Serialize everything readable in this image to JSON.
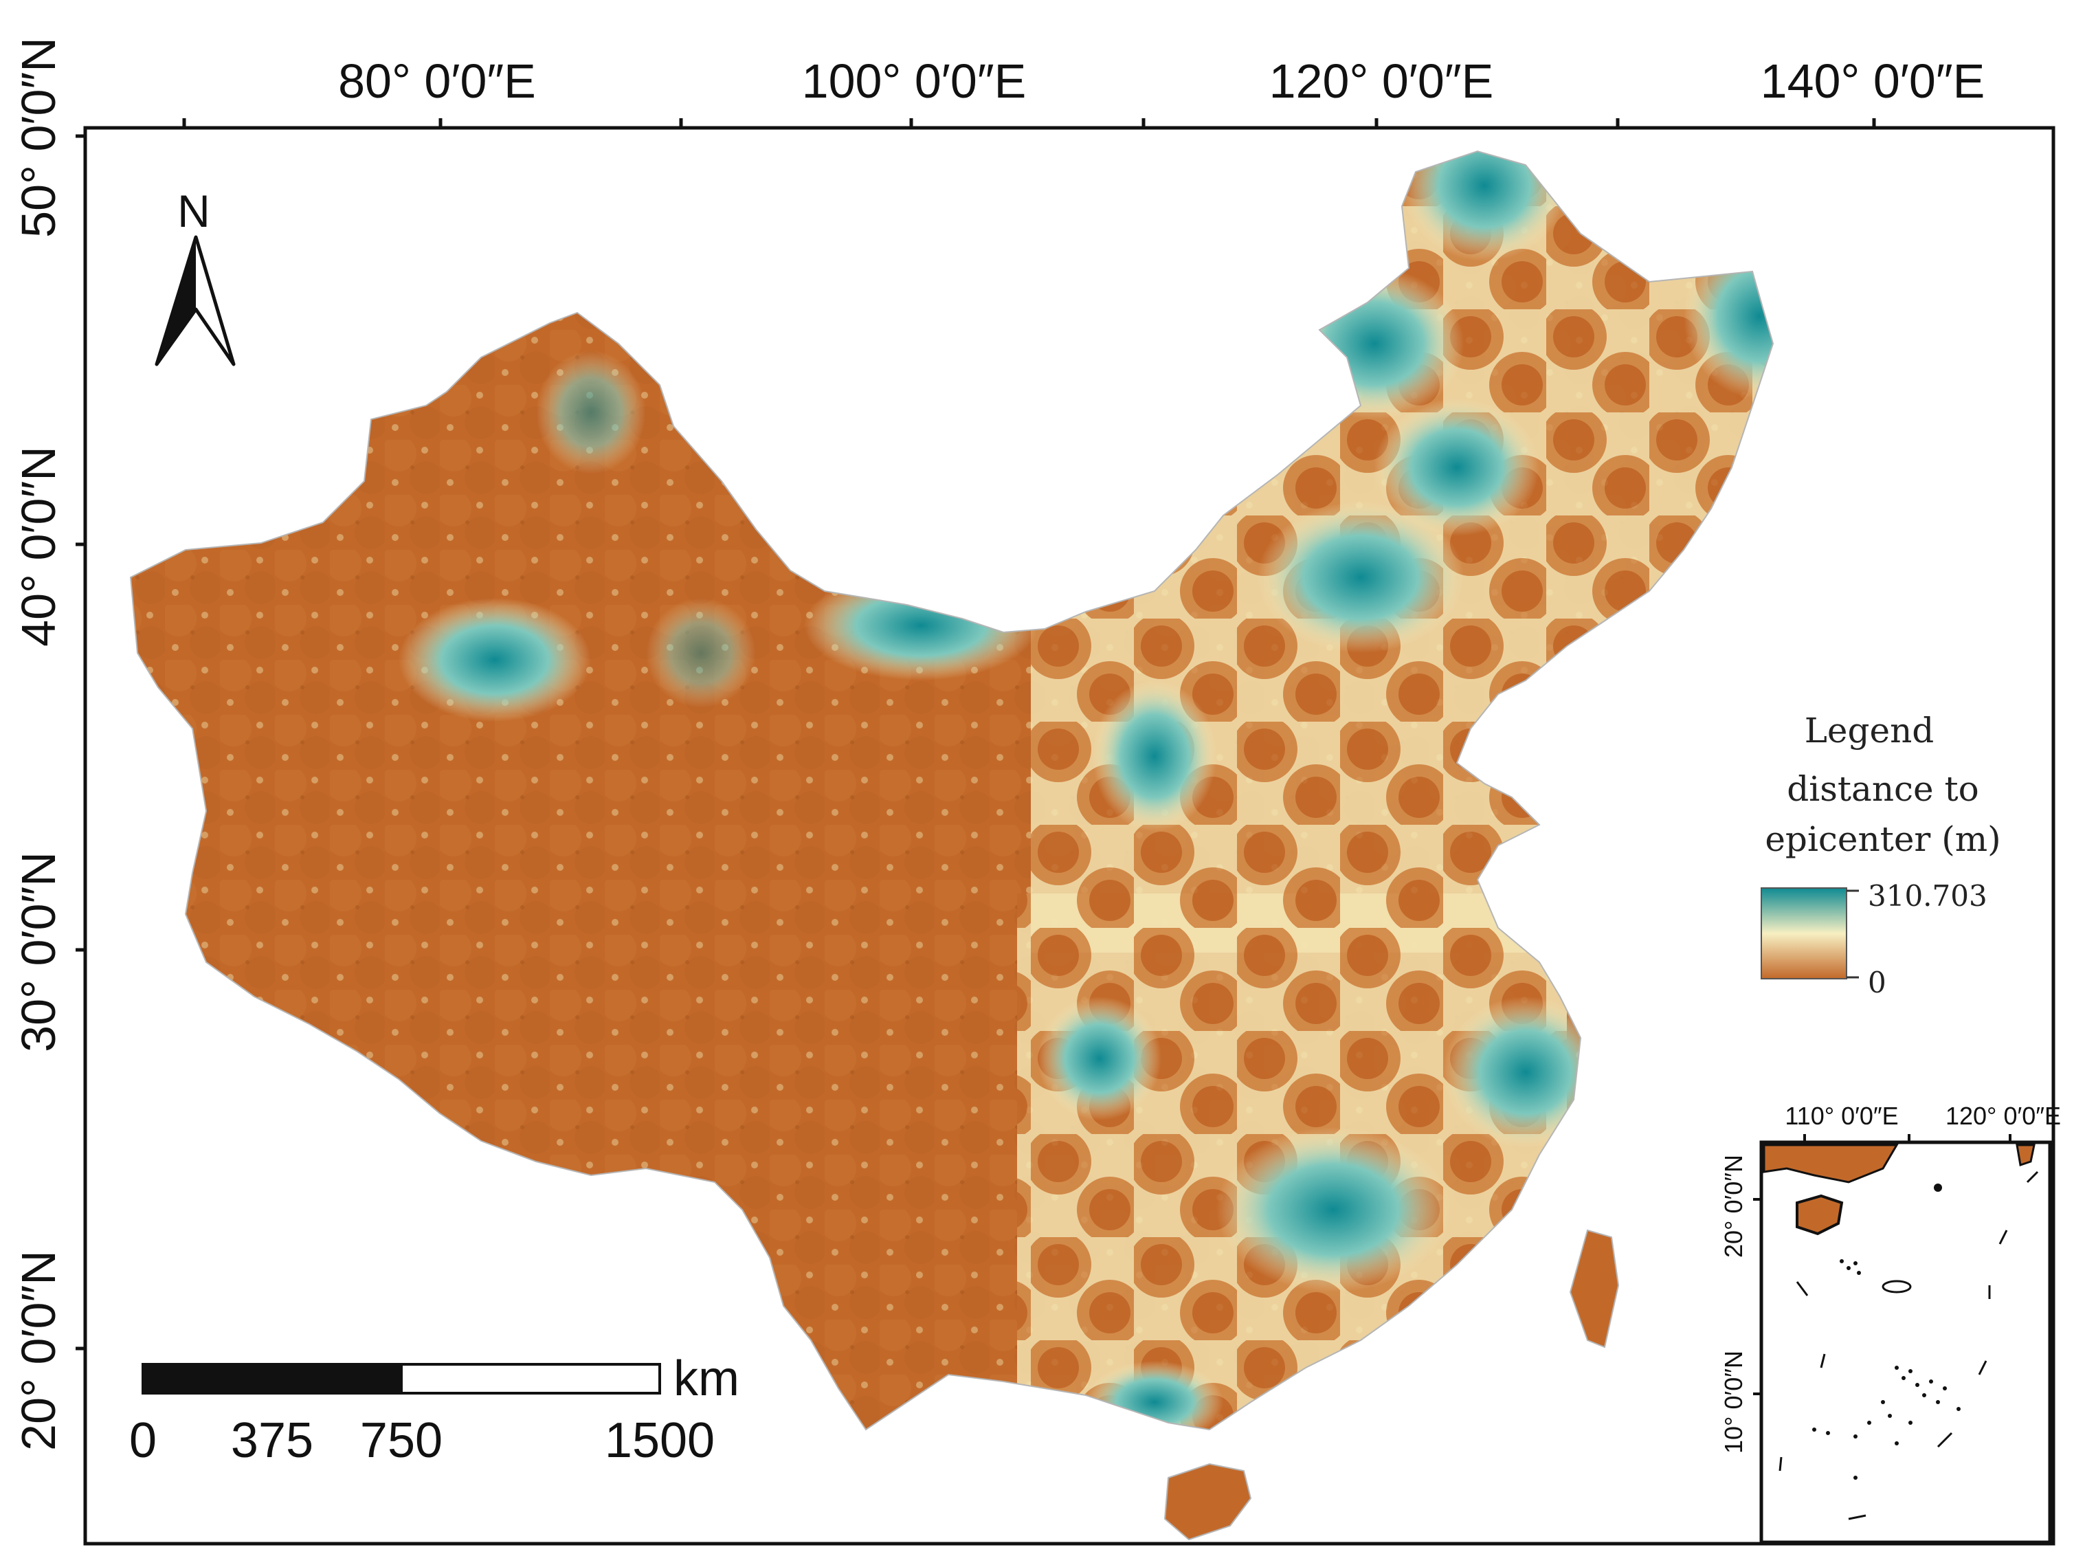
{
  "map": {
    "top_axis_labels": [
      "80° 0′0″E",
      "100° 0′0″E",
      "120° 0′0″E",
      "140° 0′0″E"
    ],
    "left_axis_labels": [
      "50° 0′0″N",
      "40° 0′0″N",
      "30° 0′0″N",
      "20° 0′0″N"
    ],
    "north_arrow_label": "N",
    "scale_bar": {
      "unit": "km",
      "ticks": [
        "0",
        "375",
        "750",
        "1500"
      ]
    },
    "legend": {
      "title": "Legend",
      "line1": "distance to",
      "line2": "epicenter (m)",
      "max_label": "310.703",
      "min_label": "0"
    },
    "inset": {
      "top_axis_labels": [
        "110° 0′0″E",
        "120° 0′0″E"
      ],
      "left_axis_labels": [
        "20° 0′0″N",
        "10° 0′0″N"
      ]
    },
    "colors": {
      "near": "#c2692a",
      "mid": "#f7efc2",
      "far": "#0f8a92",
      "frame": "#111111"
    }
  }
}
